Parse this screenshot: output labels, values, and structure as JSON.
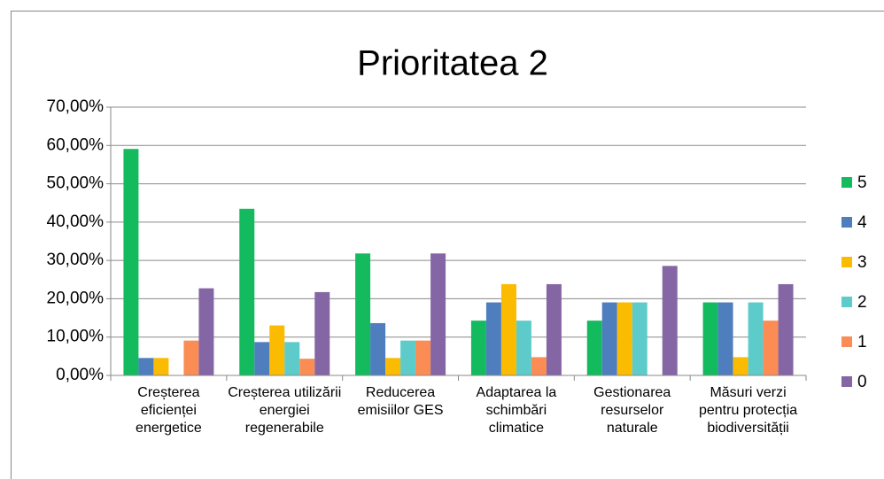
{
  "chart_data": {
    "type": "bar",
    "title": "Prioritatea 2",
    "categories": [
      "Creșterea eficienței energetice",
      "Creșterea utilizării energiei regenerabile",
      "Reducerea emisiilor GES",
      "Adaptarea la schimbări climatice",
      "Gestionarea resurselor naturale",
      "Măsuri verzi pentru protecția biodiversității"
    ],
    "series": [
      {
        "name": "5",
        "color": "#14bb5e",
        "values": [
          59.09,
          43.48,
          31.82,
          14.29,
          14.29,
          19.05
        ]
      },
      {
        "name": "4",
        "color": "#4f7ebf",
        "values": [
          4.55,
          8.7,
          13.64,
          19.05,
          19.05,
          19.05
        ]
      },
      {
        "name": "3",
        "color": "#fbbb00",
        "values": [
          4.55,
          13.04,
          4.55,
          23.81,
          19.05,
          4.76
        ]
      },
      {
        "name": "2",
        "color": "#5ecbcb",
        "values": [
          0,
          8.7,
          9.09,
          14.29,
          19.05,
          19.05
        ]
      },
      {
        "name": "1",
        "color": "#fa8c54",
        "values": [
          9.09,
          4.35,
          9.09,
          4.76,
          0,
          14.29
        ]
      },
      {
        "name": "0",
        "color": "#8566a4",
        "values": [
          22.73,
          21.74,
          31.82,
          23.81,
          28.57,
          23.81
        ]
      }
    ],
    "ylim": [
      0,
      70
    ],
    "yticks": [
      {
        "value": 0,
        "label": "0,00%"
      },
      {
        "value": 10,
        "label": "10,00%"
      },
      {
        "value": 20,
        "label": "20,00%"
      },
      {
        "value": 30,
        "label": "30,00%"
      },
      {
        "value": 40,
        "label": "40,00%"
      },
      {
        "value": 50,
        "label": "50,00%"
      },
      {
        "value": 60,
        "label": "60,00%"
      },
      {
        "value": 70,
        "label": "70,00%"
      }
    ],
    "grid": true,
    "legend": "right"
  }
}
